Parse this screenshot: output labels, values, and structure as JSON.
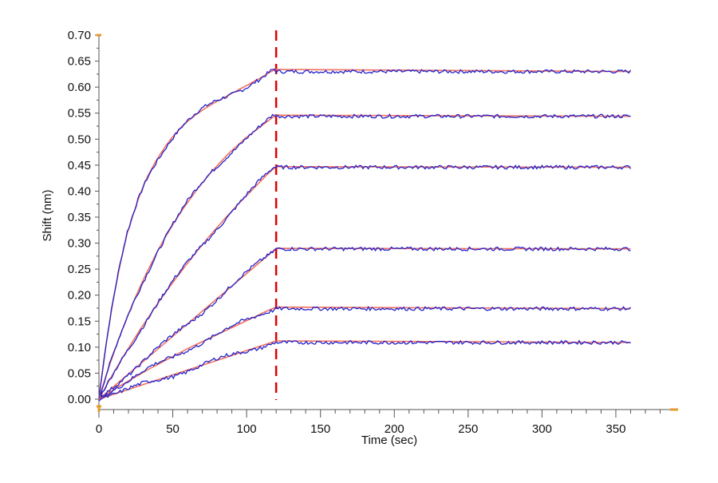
{
  "chart_data": {
    "type": "line",
    "title": "",
    "xlabel": "Time (sec)",
    "ylabel": "Shift (nm)",
    "xlim": [
      0,
      390
    ],
    "ylim": [
      -0.02,
      0.7
    ],
    "x_ticks": [
      0,
      50,
      100,
      150,
      200,
      250,
      300,
      350
    ],
    "y_ticks": [
      0.0,
      0.05,
      0.1,
      0.15,
      0.2,
      0.25,
      0.3,
      0.35,
      0.4,
      0.45,
      0.5,
      0.55,
      0.6,
      0.65,
      0.7
    ],
    "x_tick_labels": [
      "0",
      "50",
      "100",
      "150",
      "200",
      "250",
      "300",
      "350"
    ],
    "y_tick_labels": [
      "0.00",
      "0.05",
      "0.10",
      "0.15",
      "0.20",
      "0.25",
      "0.30",
      "0.35",
      "0.40",
      "0.45",
      "0.50",
      "0.55",
      "0.60",
      "0.65",
      "0.70"
    ],
    "dissociation_start": 120,
    "x_end": 360,
    "grid": false,
    "legend": "none",
    "colors": {
      "measured": "#2222cc",
      "fit": "#f07060",
      "marker": "#dd0000",
      "axis_accent": "#e89a2a"
    },
    "series": [
      {
        "association": [
          0.0,
          0.04,
          0.078,
          0.112,
          0.144,
          0.174,
          0.202,
          0.228,
          0.253,
          0.276,
          0.297,
          0.319,
          0.333,
          0.35,
          0.365,
          0.38,
          0.393,
          0.406,
          0.418,
          0.429,
          0.438,
          0.447,
          0.456,
          0.464,
          0.472,
          0.479,
          0.487,
          0.493,
          0.5,
          0.506,
          0.512,
          0.517,
          0.523,
          0.527,
          0.532,
          0.536,
          0.54,
          0.544,
          0.548,
          0.551,
          0.555,
          0.558,
          0.561,
          0.564,
          0.567,
          0.57,
          0.573,
          0.575,
          0.578,
          0.581,
          0.583,
          0.586,
          0.589,
          0.591,
          0.594,
          0.597,
          0.599,
          0.602,
          0.604,
          0.607,
          0.61,
          0.613,
          0.615,
          0.618,
          0.621,
          0.624,
          0.627,
          0.63,
          0.632,
          0.634
        ],
        "dissociation": 0.63
      },
      {
        "association": [
          0.0,
          0.022,
          0.043,
          0.063,
          0.082,
          0.101,
          0.119,
          0.136,
          0.153,
          0.169,
          0.185,
          0.2,
          0.215,
          0.229,
          0.243,
          0.256,
          0.269,
          0.282,
          0.294,
          0.306,
          0.317,
          0.328,
          0.339,
          0.349,
          0.359,
          0.369,
          0.378,
          0.387,
          0.396,
          0.405,
          0.413,
          0.421,
          0.429,
          0.437,
          0.444,
          0.451,
          0.458,
          0.465,
          0.472,
          0.478,
          0.484,
          0.49,
          0.496,
          0.502,
          0.507,
          0.512,
          0.517,
          0.522,
          0.527,
          0.532,
          0.537,
          0.542,
          0.546
        ],
        "dissociation": 0.544
      },
      {
        "association": [
          0.0,
          0.016,
          0.032,
          0.047,
          0.062,
          0.077,
          0.091,
          0.105,
          0.119,
          0.133,
          0.146,
          0.159,
          0.172,
          0.185,
          0.197,
          0.209,
          0.221,
          0.233,
          0.244,
          0.256,
          0.267,
          0.278,
          0.289,
          0.299,
          0.31,
          0.32,
          0.33,
          0.34,
          0.35,
          0.359,
          0.369,
          0.378,
          0.387,
          0.396,
          0.405,
          0.414,
          0.423,
          0.432,
          0.44,
          0.447
        ],
        "dissociation": 0.446
      },
      {
        "association": [
          0.0,
          0.01,
          0.02,
          0.03,
          0.04,
          0.05,
          0.06,
          0.07,
          0.08,
          0.09,
          0.1,
          0.11,
          0.12,
          0.13,
          0.14,
          0.15,
          0.16,
          0.17,
          0.18,
          0.19,
          0.2,
          0.21,
          0.22,
          0.23,
          0.24,
          0.25,
          0.26,
          0.27,
          0.28,
          0.29
        ],
        "dissociation": 0.289
      },
      {
        "association": [
          0.0,
          0.012,
          0.024,
          0.035,
          0.046,
          0.057,
          0.067,
          0.077,
          0.087,
          0.097,
          0.106,
          0.115,
          0.124,
          0.133,
          0.142,
          0.151,
          0.16,
          0.169,
          0.177
        ],
        "dissociation": 0.174
      },
      {
        "association": [
          0.0,
          0.008,
          0.016,
          0.024,
          0.032,
          0.04,
          0.048,
          0.056,
          0.064,
          0.072,
          0.08,
          0.088,
          0.096,
          0.104,
          0.112
        ],
        "dissociation": 0.109
      }
    ]
  }
}
